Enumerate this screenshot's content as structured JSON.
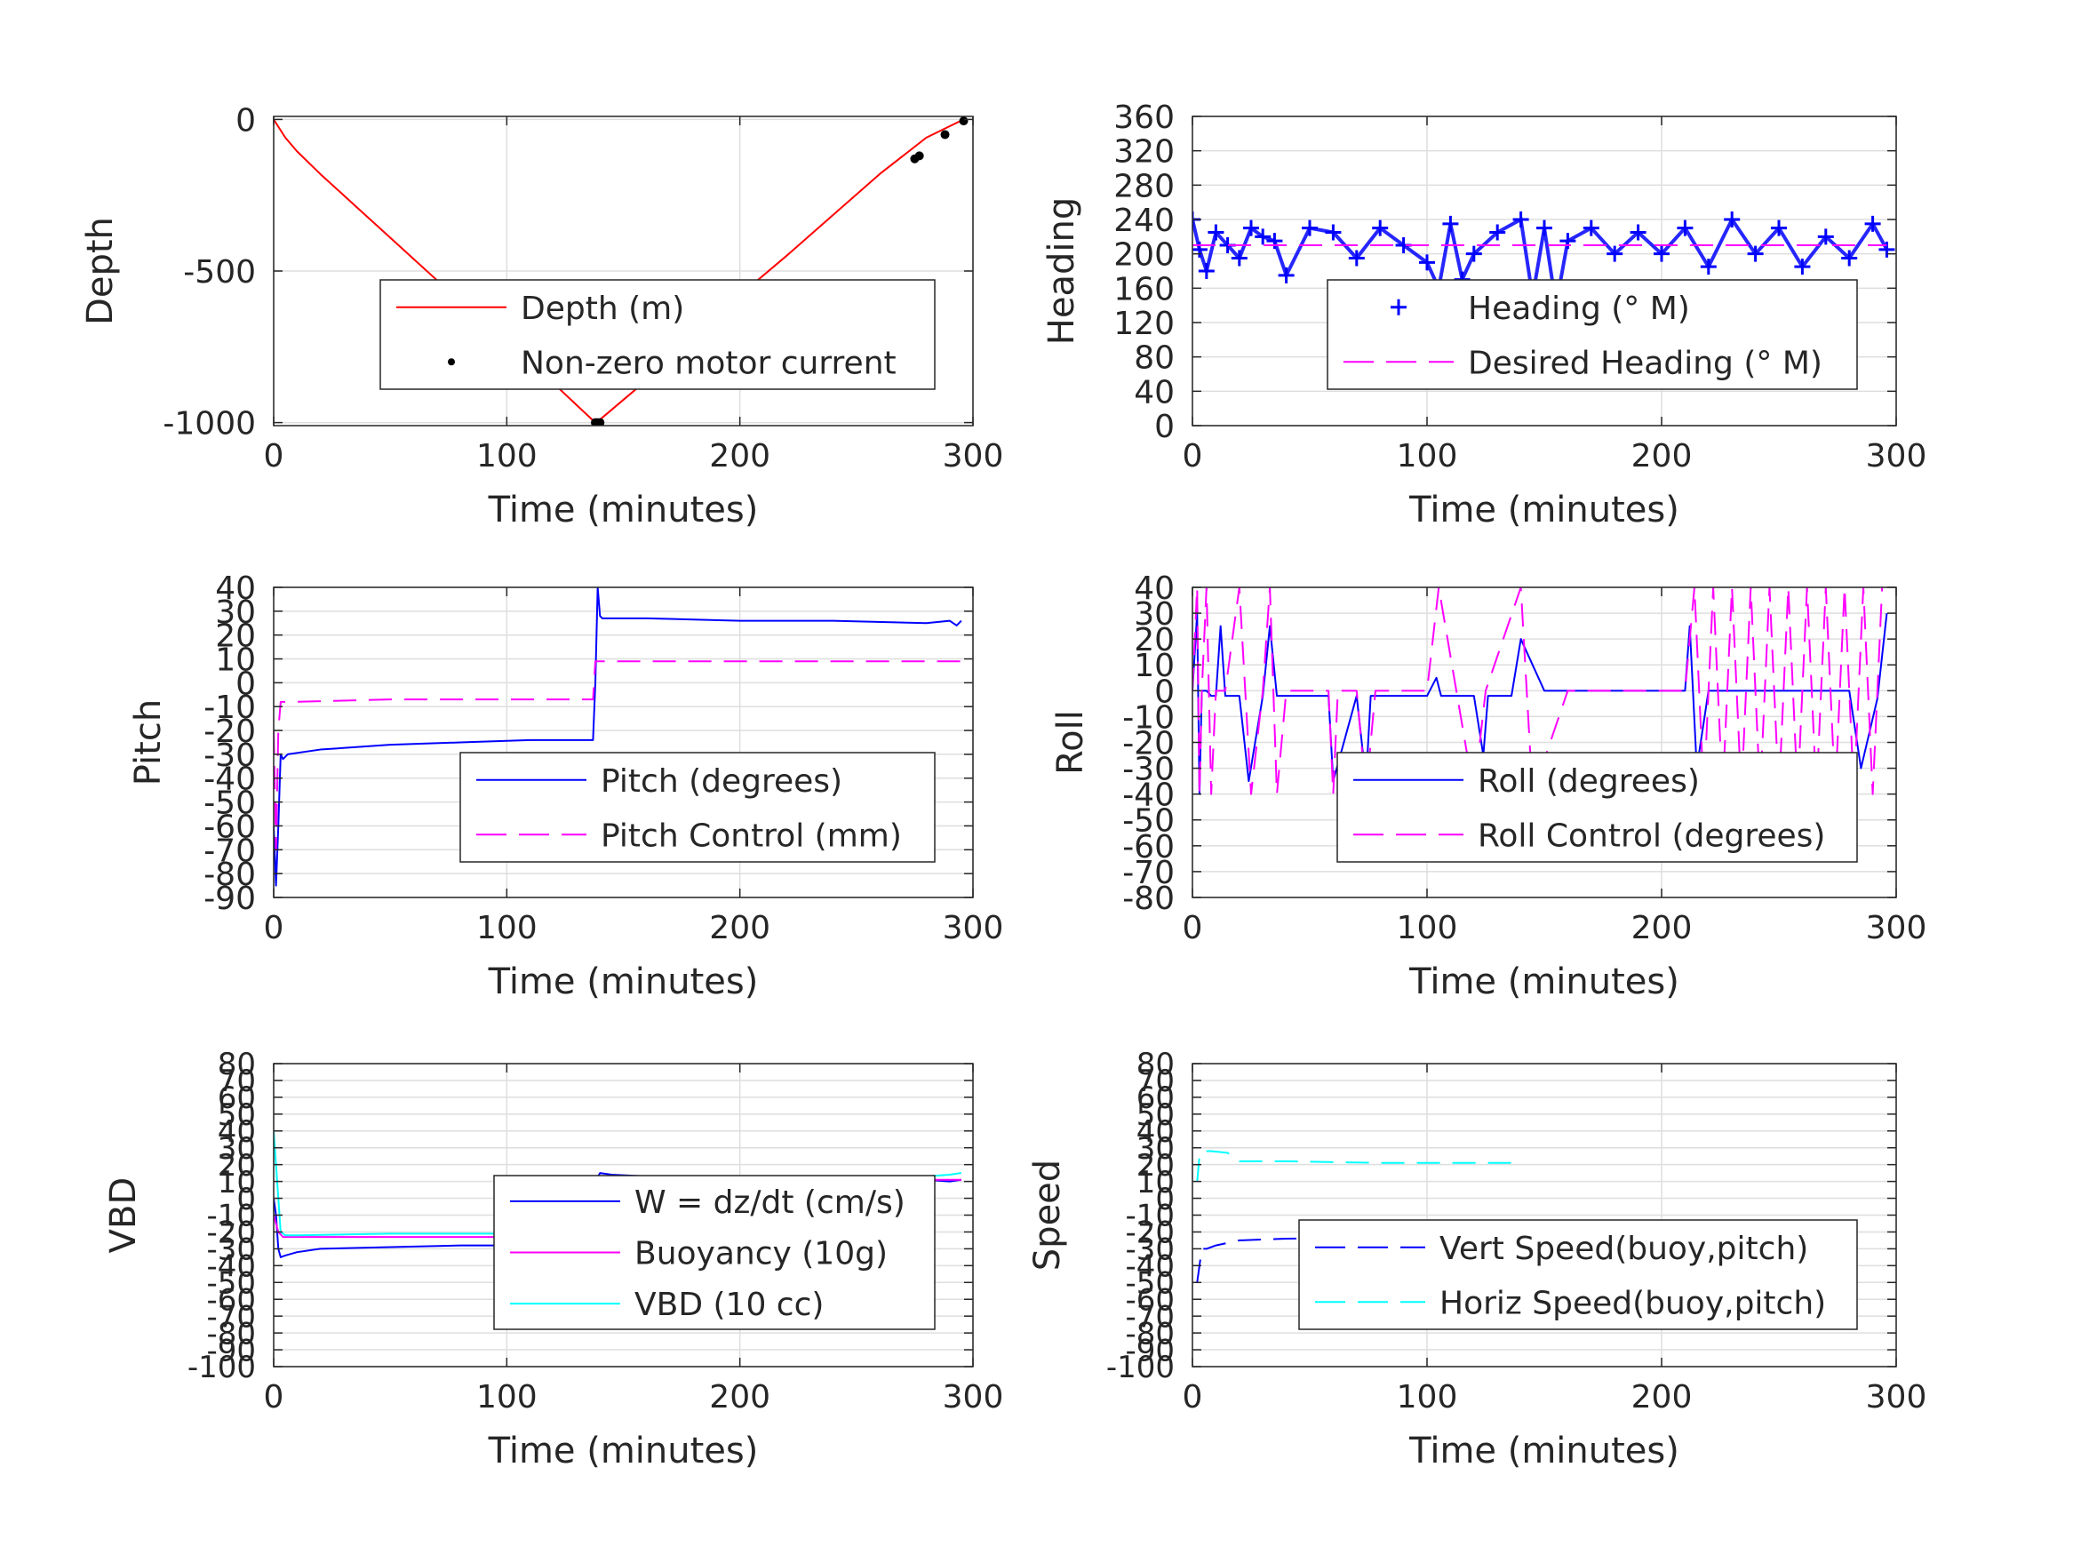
{
  "chart_data": [
    {
      "id": "depth",
      "type": "line",
      "xlabel": "Time (minutes)",
      "ylabel": "Depth",
      "xlim": [
        0,
        300
      ],
      "ylim": [
        -1010,
        10
      ],
      "xticks": [
        0,
        100,
        200,
        300
      ],
      "yticks": [
        -1000,
        -500,
        0
      ],
      "grid": true,
      "legend_position": "center-right",
      "legend": [
        "Depth (m)",
        "Non-zero motor current"
      ],
      "series": [
        {
          "name": "Depth (m)",
          "color": "#ff0000",
          "style": "solid",
          "x": [
            0,
            5,
            10,
            20,
            40,
            60,
            80,
            100,
            120,
            138,
            140,
            160,
            180,
            200,
            220,
            240,
            260,
            280,
            296
          ],
          "y": [
            0,
            -60,
            -105,
            -180,
            -320,
            -460,
            -600,
            -730,
            -870,
            -1000,
            -990,
            -860,
            -720,
            -580,
            -450,
            -315,
            -180,
            -60,
            0
          ]
        },
        {
          "name": "Non-zero motor current",
          "color": "#000000",
          "style": "markers",
          "x": [
            138,
            139,
            140,
            275,
            277,
            288,
            296
          ],
          "y": [
            -1000,
            -1000,
            -1000,
            -130,
            -120,
            -50,
            -5
          ]
        }
      ]
    },
    {
      "id": "heading",
      "type": "scatter",
      "xlabel": "Time (minutes)",
      "ylabel": "Heading",
      "xlim": [
        0,
        300
      ],
      "ylim": [
        0,
        360
      ],
      "xticks": [
        0,
        100,
        200,
        300
      ],
      "yticks": [
        0,
        40,
        80,
        120,
        160,
        200,
        240,
        280,
        320,
        360
      ],
      "grid": true,
      "legend_position": "lower-right",
      "legend": [
        "Heading (° M)",
        "Desired Heading (° M)"
      ],
      "series": [
        {
          "name": "Heading (° M)",
          "color": "#0000ff",
          "style": "plus-markers",
          "x": [
            0,
            3,
            6,
            10,
            15,
            20,
            25,
            30,
            35,
            40,
            50,
            60,
            70,
            80,
            90,
            100,
            105,
            110,
            115,
            120,
            130,
            140,
            145,
            150,
            155,
            160,
            170,
            180,
            190,
            200,
            210,
            220,
            230,
            240,
            250,
            260,
            270,
            280,
            290,
            296
          ],
          "y": [
            240,
            205,
            180,
            225,
            210,
            195,
            230,
            220,
            215,
            175,
            230,
            225,
            195,
            230,
            210,
            190,
            160,
            235,
            170,
            200,
            225,
            240,
            150,
            230,
            140,
            215,
            230,
            200,
            225,
            200,
            230,
            185,
            240,
            200,
            230,
            185,
            220,
            195,
            235,
            205
          ]
        },
        {
          "name": "Desired Heading (° M)",
          "color": "#ff00ff",
          "style": "dashed",
          "x": [
            0,
            296
          ],
          "y": [
            210,
            210
          ]
        }
      ]
    },
    {
      "id": "pitch",
      "type": "line",
      "xlabel": "Time (minutes)",
      "ylabel": "Pitch",
      "xlim": [
        0,
        300
      ],
      "ylim": [
        -90,
        40
      ],
      "xticks": [
        0,
        100,
        200,
        300
      ],
      "yticks": [
        -90,
        -80,
        -70,
        -60,
        -50,
        -40,
        -30,
        -20,
        -10,
        0,
        10,
        20,
        30,
        40
      ],
      "grid": true,
      "legend_position": "lower-right",
      "legend": [
        "Pitch (degrees)",
        "Pitch Control (mm)"
      ],
      "series": [
        {
          "name": "Pitch (degrees)",
          "color": "#0000ff",
          "style": "solid",
          "x": [
            0,
            1,
            2,
            3,
            4,
            6,
            20,
            50,
            80,
            110,
            137,
            138,
            139,
            140,
            141,
            145,
            160,
            200,
            240,
            280,
            290,
            293,
            295
          ],
          "y": [
            -60,
            -85,
            -60,
            -30,
            -32,
            -30,
            -28,
            -26,
            -25,
            -24,
            -24,
            0,
            40,
            28,
            27,
            27,
            27,
            26,
            26,
            25,
            26,
            24,
            26
          ]
        },
        {
          "name": "Pitch Control (mm)",
          "color": "#ff00ff",
          "style": "dashed",
          "x": [
            0,
            1,
            2,
            3,
            8,
            50,
            100,
            137,
            138,
            140,
            200,
            295
          ],
          "y": [
            -20,
            -70,
            -20,
            -8,
            -8,
            -7,
            -7,
            -7,
            9,
            9,
            9,
            9
          ]
        }
      ]
    },
    {
      "id": "roll",
      "type": "line",
      "xlabel": "Time (minutes)",
      "ylabel": "Roll",
      "xlim": [
        0,
        300
      ],
      "ylim": [
        -80,
        40
      ],
      "xticks": [
        0,
        100,
        200,
        300
      ],
      "yticks": [
        -80,
        -70,
        -60,
        -50,
        -40,
        -30,
        -20,
        -10,
        0,
        10,
        20,
        30,
        40
      ],
      "grid": true,
      "legend_position": "lower-right",
      "legend": [
        "Roll (degrees)",
        "Roll Control (degrees)"
      ],
      "series": [
        {
          "name": "Roll (degrees)",
          "color": "#0000ff",
          "style": "solid",
          "x": [
            0,
            2,
            3,
            4,
            6,
            8,
            10,
            12,
            14,
            20,
            24,
            30,
            33,
            36,
            40,
            50,
            58,
            60,
            70,
            74,
            76,
            90,
            100,
            104,
            106,
            120,
            124,
            126,
            136,
            140,
            150,
            160,
            170,
            200,
            210,
            212,
            215,
            220,
            250,
            280,
            285,
            292,
            296
          ],
          "y": [
            0,
            30,
            -40,
            0,
            0,
            -2,
            -2,
            25,
            -2,
            -2,
            -35,
            -2,
            25,
            -2,
            -2,
            -2,
            -2,
            -35,
            -2,
            -35,
            -2,
            -2,
            -2,
            5,
            -2,
            -2,
            -25,
            -2,
            -2,
            20,
            0,
            0,
            0,
            0,
            0,
            25,
            -30,
            0,
            0,
            0,
            -30,
            -3,
            30
          ]
        },
        {
          "name": "Roll Control (degrees)",
          "color": "#ff00ff",
          "style": "dashed",
          "x": [
            0,
            2,
            3,
            4,
            6,
            8,
            10,
            14,
            20,
            25,
            30,
            33,
            36,
            40,
            58,
            60,
            62,
            70,
            74,
            78,
            100,
            105,
            120,
            125,
            140,
            145,
            160,
            175,
            210,
            214,
            218,
            222,
            226,
            230,
            234,
            238,
            242,
            246,
            250,
            254,
            258,
            262,
            266,
            270,
            274,
            278,
            282,
            286,
            290,
            294
          ],
          "y": [
            0,
            40,
            -40,
            0,
            40,
            -40,
            0,
            0,
            40,
            -40,
            0,
            40,
            -40,
            0,
            0,
            -40,
            0,
            0,
            -40,
            0,
            0,
            40,
            -40,
            0,
            40,
            -40,
            0,
            0,
            0,
            40,
            -40,
            40,
            -40,
            40,
            -40,
            40,
            -40,
            40,
            -40,
            40,
            -40,
            40,
            -40,
            40,
            -40,
            40,
            -40,
            40,
            -40,
            40
          ]
        }
      ]
    },
    {
      "id": "vbd",
      "type": "line",
      "xlabel": "Time (minutes)",
      "ylabel": "VBD",
      "xlim": [
        0,
        300
      ],
      "ylim": [
        -100,
        80
      ],
      "xticks": [
        0,
        100,
        200,
        300
      ],
      "yticks": [
        -100,
        -90,
        -80,
        -70,
        -60,
        -50,
        -40,
        -30,
        -20,
        -10,
        0,
        10,
        20,
        30,
        40,
        50,
        60,
        70,
        80
      ],
      "grid": true,
      "legend_position": "lower-right",
      "legend": [
        "W = dz/dt (cm/s)",
        "Buoyancy (10g)",
        "VBD (10 cc)"
      ],
      "series": [
        {
          "name": "W = dz/dt (cm/s)",
          "color": "#0000ff",
          "style": "solid",
          "x": [
            0,
            1,
            2,
            3,
            5,
            10,
            20,
            50,
            80,
            110,
            137,
            138,
            140,
            145,
            160,
            200,
            240,
            270,
            280,
            290,
            295
          ],
          "y": [
            0,
            -10,
            -30,
            -35,
            -34,
            -32,
            -30,
            -29,
            -28,
            -28,
            -28,
            10,
            15,
            14,
            13,
            13,
            12,
            12,
            11,
            10,
            11
          ]
        },
        {
          "name": "Buoyancy (10g)",
          "color": "#ff00ff",
          "style": "solid",
          "x": [
            0,
            2,
            4,
            10,
            50,
            100,
            137,
            138,
            140,
            200,
            295
          ],
          "y": [
            -10,
            -20,
            -23,
            -23,
            -23,
            -23,
            -23,
            11,
            11,
            11,
            11
          ]
        },
        {
          "name": "VBD (10 cc)",
          "color": "#00ffff",
          "style": "solid",
          "x": [
            0,
            1,
            2,
            3,
            5,
            10,
            50,
            100,
            137,
            138,
            140,
            200,
            260,
            280,
            290,
            295
          ],
          "y": [
            40,
            20,
            0,
            -20,
            -22,
            -22,
            -21,
            -21,
            -21,
            10,
            11,
            11,
            12,
            13,
            14,
            15
          ]
        }
      ]
    },
    {
      "id": "speed",
      "type": "line",
      "xlabel": "Time (minutes)",
      "ylabel": "Speed",
      "xlim": [
        0,
        300
      ],
      "ylim": [
        -100,
        80
      ],
      "xticks": [
        0,
        100,
        200,
        300
      ],
      "yticks": [
        -100,
        -90,
        -80,
        -70,
        -60,
        -50,
        -40,
        -30,
        -20,
        -10,
        0,
        10,
        20,
        30,
        40,
        50,
        60,
        70,
        80
      ],
      "grid": true,
      "legend_position": "lower-right",
      "legend": [
        "Vert Speed(buoy,pitch)",
        "Horiz Speed(buoy,pitch)"
      ],
      "series": [
        {
          "name": "Vert Speed(buoy,pitch)",
          "color": "#0000ff",
          "style": "dashed",
          "x": [
            2,
            3,
            4,
            6,
            10,
            20,
            40,
            80,
            120,
            137
          ],
          "y": [
            -50,
            -40,
            -30,
            -30,
            -28,
            -25,
            -24,
            -23,
            -23,
            -23
          ]
        },
        {
          "name": "Horiz Speed(buoy,pitch)",
          "color": "#00ffff",
          "style": "dashed",
          "x": [
            2,
            3,
            4,
            8,
            15,
            20,
            40,
            80,
            120,
            137
          ],
          "y": [
            10,
            25,
            28,
            28,
            27,
            22,
            22,
            21,
            21,
            21
          ]
        }
      ]
    }
  ]
}
